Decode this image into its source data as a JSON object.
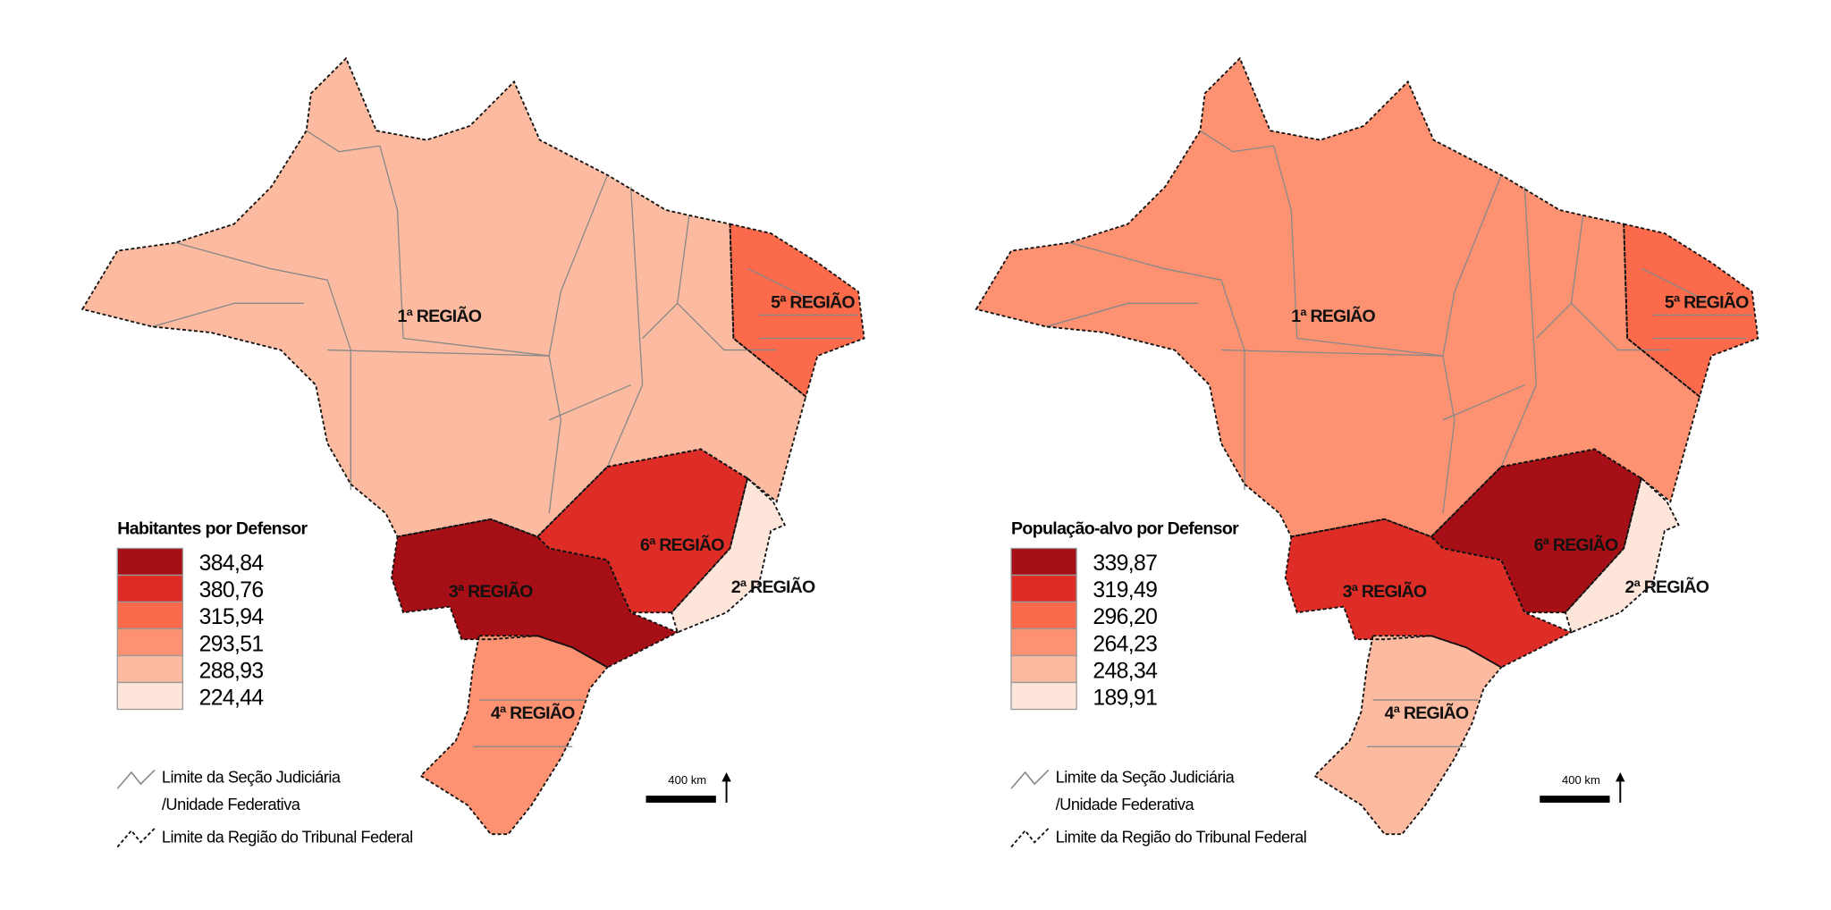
{
  "colors": [
    "#a50f15",
    "#de2d26",
    "#fb6a4a",
    "#fc9272",
    "#fcbba1",
    "#fee5d9"
  ],
  "maps": [
    {
      "legend_title": "Habitantes por Defensor",
      "classes": [
        "384,84",
        "380,76",
        "315,94",
        "293,51",
        "288,93",
        "224,44"
      ],
      "regions": [
        {
          "label": "1ª REGIÃO",
          "class_index": 4
        },
        {
          "label": "2ª REGIÃO",
          "class_index": 5
        },
        {
          "label": "3ª REGIÃO",
          "class_index": 0
        },
        {
          "label": "4ª REGIÃO",
          "class_index": 3
        },
        {
          "label": "5ª REGIÃO",
          "class_index": 2
        },
        {
          "label": "6ª REGIÃO",
          "class_index": 1
        }
      ]
    },
    {
      "legend_title": "População-alvo por Defensor",
      "classes": [
        "339,87",
        "319,49",
        "296,20",
        "264,23",
        "248,34",
        "189,91"
      ],
      "regions": [
        {
          "label": "1ª REGIÃO",
          "class_index": 3
        },
        {
          "label": "2ª REGIÃO",
          "class_index": 5
        },
        {
          "label": "3ª REGIÃO",
          "class_index": 1
        },
        {
          "label": "4ª REGIÃO",
          "class_index": 4
        },
        {
          "label": "5ª REGIÃO",
          "class_index": 2
        },
        {
          "label": "6ª REGIÃO",
          "class_index": 0
        }
      ]
    }
  ],
  "boundary_legend": {
    "state_line_1": "Limite da Seção Judiciária",
    "state_line_2": "/Unidade Federativa",
    "region_line": "Limite da Região do Tribunal Federal"
  },
  "scale": {
    "label": "400 km"
  }
}
